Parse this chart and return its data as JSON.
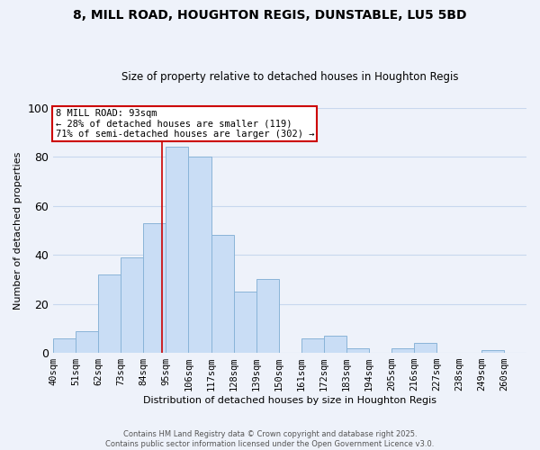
{
  "title": "8, MILL ROAD, HOUGHTON REGIS, DUNSTABLE, LU5 5BD",
  "subtitle": "Size of property relative to detached houses in Houghton Regis",
  "xlabel": "Distribution of detached houses by size in Houghton Regis",
  "ylabel": "Number of detached properties",
  "bin_labels": [
    "40sqm",
    "51sqm",
    "62sqm",
    "73sqm",
    "84sqm",
    "95sqm",
    "106sqm",
    "117sqm",
    "128sqm",
    "139sqm",
    "150sqm",
    "161sqm",
    "172sqm",
    "183sqm",
    "194sqm",
    "205sqm",
    "216sqm",
    "227sqm",
    "238sqm",
    "249sqm",
    "260sqm"
  ],
  "bar_heights": [
    6,
    9,
    32,
    39,
    53,
    84,
    80,
    48,
    25,
    30,
    0,
    6,
    7,
    2,
    0,
    2,
    4,
    0,
    0,
    1,
    0
  ],
  "bar_color": "#c9ddf5",
  "bar_edge_color": "#8ab4d8",
  "grid_color": "#c8d8ee",
  "annotation_title": "8 MILL ROAD: 93sqm",
  "annotation_line1": "← 28% of detached houses are smaller (119)",
  "annotation_line2": "71% of semi-detached houses are larger (302) →",
  "vline_x": 93,
  "vline_color": "#cc0000",
  "ylim": [
    0,
    100
  ],
  "footnote1": "Contains HM Land Registry data © Crown copyright and database right 2025.",
  "footnote2": "Contains public sector information licensed under the Open Government Licence v3.0.",
  "background_color": "#eef2fa",
  "title_fontsize": 10,
  "subtitle_fontsize": 8.5,
  "axis_label_fontsize": 8,
  "tick_fontsize": 7.5
}
